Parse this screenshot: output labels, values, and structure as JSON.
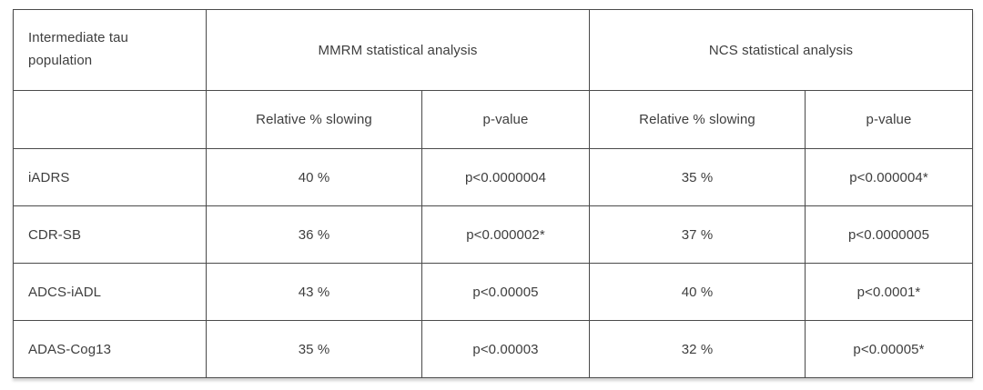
{
  "colors": {
    "border": "#4a4a4a",
    "text": "#3e3e3e",
    "background": "#ffffff"
  },
  "chart_data": {
    "type": "table",
    "title": "",
    "corner_header": "Intermediate tau population",
    "column_groups": [
      {
        "label": "MMRM statistical analysis",
        "span": 2
      },
      {
        "label": "NCS statistical analysis",
        "span": 2
      }
    ],
    "sub_headers": {
      "mmrm_slowing": "Relative % slowing",
      "mmrm_pvalue": "p-value",
      "ncs_slowing": "Relative % slowing",
      "ncs_pvalue": "p-value"
    },
    "rows": [
      {
        "label": "iADRS",
        "values": [
          "40 %",
          "p<0.0000004",
          "35 %",
          "p<0.000004*"
        ]
      },
      {
        "label": "CDR-SB",
        "values": [
          "36 %",
          "p<0.000002*",
          "37 %",
          "p<0.0000005"
        ]
      },
      {
        "label": "ADCS-iADL",
        "values": [
          "43 %",
          "p<0.00005",
          "40 %",
          "p<0.0001*"
        ]
      },
      {
        "label": "ADAS-Cog13",
        "values": [
          "35 %",
          "p<0.00003",
          "32 %",
          "p<0.00005*"
        ]
      }
    ]
  }
}
